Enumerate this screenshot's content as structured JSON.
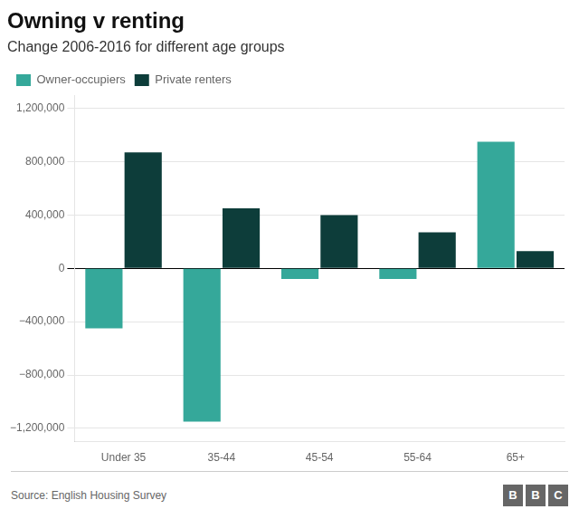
{
  "chart_data": {
    "type": "bar",
    "title": "Owning v renting",
    "subtitle": "Change 2006-2016 for different age groups",
    "categories": [
      "Under 35",
      "35-44",
      "45-54",
      "55-64",
      "65+"
    ],
    "series": [
      {
        "name": "Owner-occupiers",
        "color": "#35a89a",
        "values": [
          -450000,
          -1150000,
          -80000,
          -80000,
          950000
        ]
      },
      {
        "name": "Private renters",
        "color": "#0d3d3a",
        "values": [
          870000,
          450000,
          400000,
          270000,
          130000
        ]
      }
    ],
    "ylim": [
      -1300000,
      1300000
    ],
    "yticks": [
      {
        "value": -1200000,
        "label": "−1,200,000"
      },
      {
        "value": -800000,
        "label": "−800,000"
      },
      {
        "value": -400000,
        "label": "−400,000"
      },
      0,
      {
        "value": 400000,
        "label": "400,000"
      },
      {
        "value": 800000,
        "label": "800,000"
      },
      {
        "value": 1200000,
        "label": "1,200,000"
      }
    ],
    "grid": true,
    "legend": "upper left",
    "source": "Source: English Housing Survey",
    "logo": "BBC"
  }
}
